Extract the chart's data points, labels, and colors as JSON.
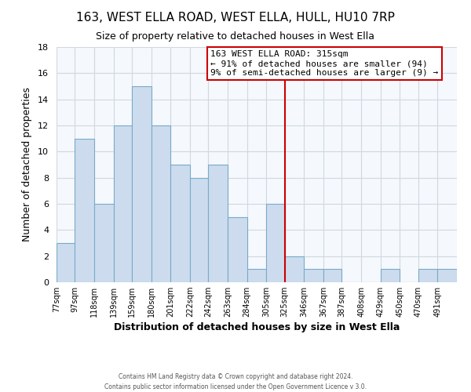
{
  "title": "163, WEST ELLA ROAD, WEST ELLA, HULL, HU10 7RP",
  "subtitle": "Size of property relative to detached houses in West Ella",
  "xlabel": "Distribution of detached houses by size in West Ella",
  "ylabel": "Number of detached properties",
  "footer_line1": "Contains HM Land Registry data © Crown copyright and database right 2024.",
  "footer_line2": "Contains public sector information licensed under the Open Government Licence v 3.0.",
  "bin_labels": [
    "77sqm",
    "97sqm",
    "118sqm",
    "139sqm",
    "159sqm",
    "180sqm",
    "201sqm",
    "222sqm",
    "242sqm",
    "263sqm",
    "284sqm",
    "305sqm",
    "325sqm",
    "346sqm",
    "367sqm",
    "387sqm",
    "408sqm",
    "429sqm",
    "450sqm",
    "470sqm",
    "491sqm"
  ],
  "bar_heights": [
    3,
    11,
    6,
    12,
    15,
    12,
    9,
    8,
    9,
    5,
    1,
    6,
    2,
    1,
    1,
    0,
    0,
    1,
    0,
    1,
    1
  ],
  "bar_color": "#ccdcee",
  "bar_edge_color": "#7aaac8",
  "grid_color": "#d0d8e0",
  "background_color": "#ffffff",
  "plot_bg_color": "#f5f8fc",
  "annotation_title": "163 WEST ELLA ROAD: 315sqm",
  "annotation_line1": "← 91% of detached houses are smaller (94)",
  "annotation_line2": "9% of semi-detached houses are larger (9) →",
  "annotation_box_edge_color": "#cc0000",
  "annotation_box_fill": "#ffffff",
  "vline_color": "#cc0000",
  "ylim": [
    0,
    18
  ],
  "yticks": [
    0,
    2,
    4,
    6,
    8,
    10,
    12,
    14,
    16,
    18
  ],
  "bin_edges": [
    77,
    97,
    118,
    139,
    159,
    180,
    201,
    222,
    242,
    263,
    284,
    305,
    325,
    346,
    367,
    387,
    408,
    429,
    450,
    470,
    491,
    512
  ],
  "vline_x_index": 12
}
